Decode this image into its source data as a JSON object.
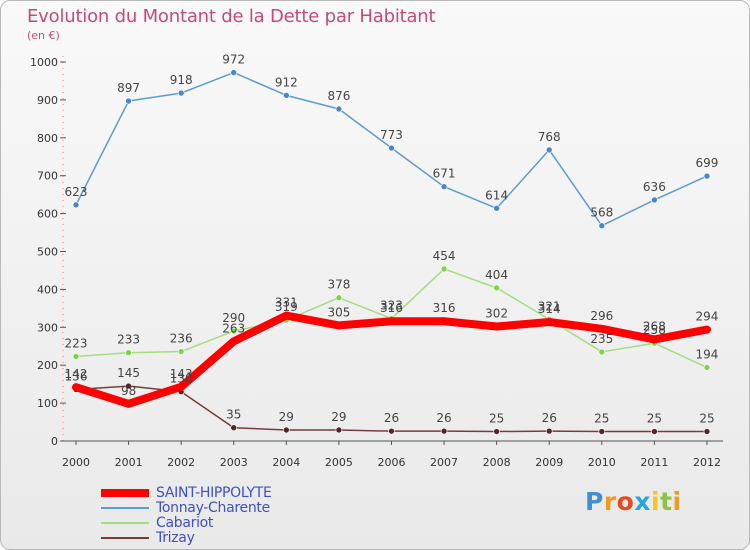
{
  "header": {
    "title": "Evolution du Montant de la Dette par Habitant",
    "unit": "(en €)"
  },
  "chart_data": {
    "type": "line",
    "title": "Evolution du Montant de la Dette par Habitant",
    "ylabel": "(en €)",
    "ylim": [
      0,
      1000
    ],
    "yticks": [
      0,
      100,
      200,
      300,
      400,
      500,
      600,
      700,
      800,
      900,
      1000
    ],
    "categories": [
      "2000",
      "2001",
      "2002",
      "2003",
      "2004",
      "2005",
      "2006",
      "2007",
      "2008",
      "2009",
      "2010",
      "2011",
      "2012"
    ],
    "grid": false,
    "legend_position": "bottom-left",
    "series": [
      {
        "name": "Tonnay-Charente",
        "color": "#5b9bd5",
        "point_color": "#4a86c8",
        "values": [
          623,
          897,
          918,
          972,
          912,
          876,
          773,
          671,
          614,
          768,
          568,
          636,
          699
        ]
      },
      {
        "name": "Cabariot",
        "color": "#a4dd80",
        "point_color": "#7ed348",
        "values": [
          223,
          233,
          236,
          290,
          319,
          378,
          323,
          454,
          404,
          321,
          235,
          258,
          194
        ]
      },
      {
        "name": "Trizay",
        "color": "#7b3a3a",
        "point_color": "#5a2222",
        "values": [
          136,
          145,
          130,
          35,
          29,
          29,
          26,
          26,
          25,
          26,
          25,
          25,
          25
        ]
      },
      {
        "name": "SAINT-HIPPOLYTE",
        "color": "#ff0000",
        "point_color": "#ff0000",
        "values": [
          142,
          98,
          143,
          263,
          331,
          305,
          316,
          316,
          302,
          314,
          296,
          268,
          294
        ]
      }
    ],
    "labels": [
      {
        "series": "Tonnay-Charente",
        "texts": [
          "623",
          "897",
          "918",
          "972",
          "912",
          "876",
          "773",
          "671",
          "614",
          "768",
          "568",
          "636",
          "699"
        ]
      },
      {
        "series": "Cabariot",
        "texts": [
          "223",
          "233",
          "236",
          "290",
          "319",
          "378",
          "323",
          "454",
          "404",
          "321",
          "235",
          "258",
          "194"
        ]
      },
      {
        "series": "Trizay",
        "texts": [
          "136",
          "145",
          "130",
          "35",
          "29",
          "29",
          "26",
          "26",
          "25",
          "26",
          "25",
          "25",
          "25"
        ]
      },
      {
        "series": "SAINT-HIPPOLYTE",
        "texts": [
          "142",
          "98",
          "143",
          "263",
          "331",
          "305",
          "316",
          "316",
          "302",
          "314",
          "296",
          "268",
          "294"
        ]
      }
    ]
  },
  "legend": {
    "items": [
      {
        "label": "SAINT-HIPPOLYTE",
        "color": "#ff0000"
      },
      {
        "label": "Tonnay-Charente",
        "color": "#5b9bd5"
      },
      {
        "label": "Cabariot",
        "color": "#a4dd80"
      },
      {
        "label": "Trizay",
        "color": "#7b3a3a"
      }
    ]
  },
  "logo": {
    "letters": [
      "P",
      "r",
      "o",
      "x",
      "i",
      "t",
      "i"
    ],
    "colors": [
      "#3d8fd6",
      "#f29a1f",
      "#e64a19",
      "#2aa4dc",
      "#f2c81f",
      "#8cc63f",
      "#f29a1f"
    ]
  }
}
